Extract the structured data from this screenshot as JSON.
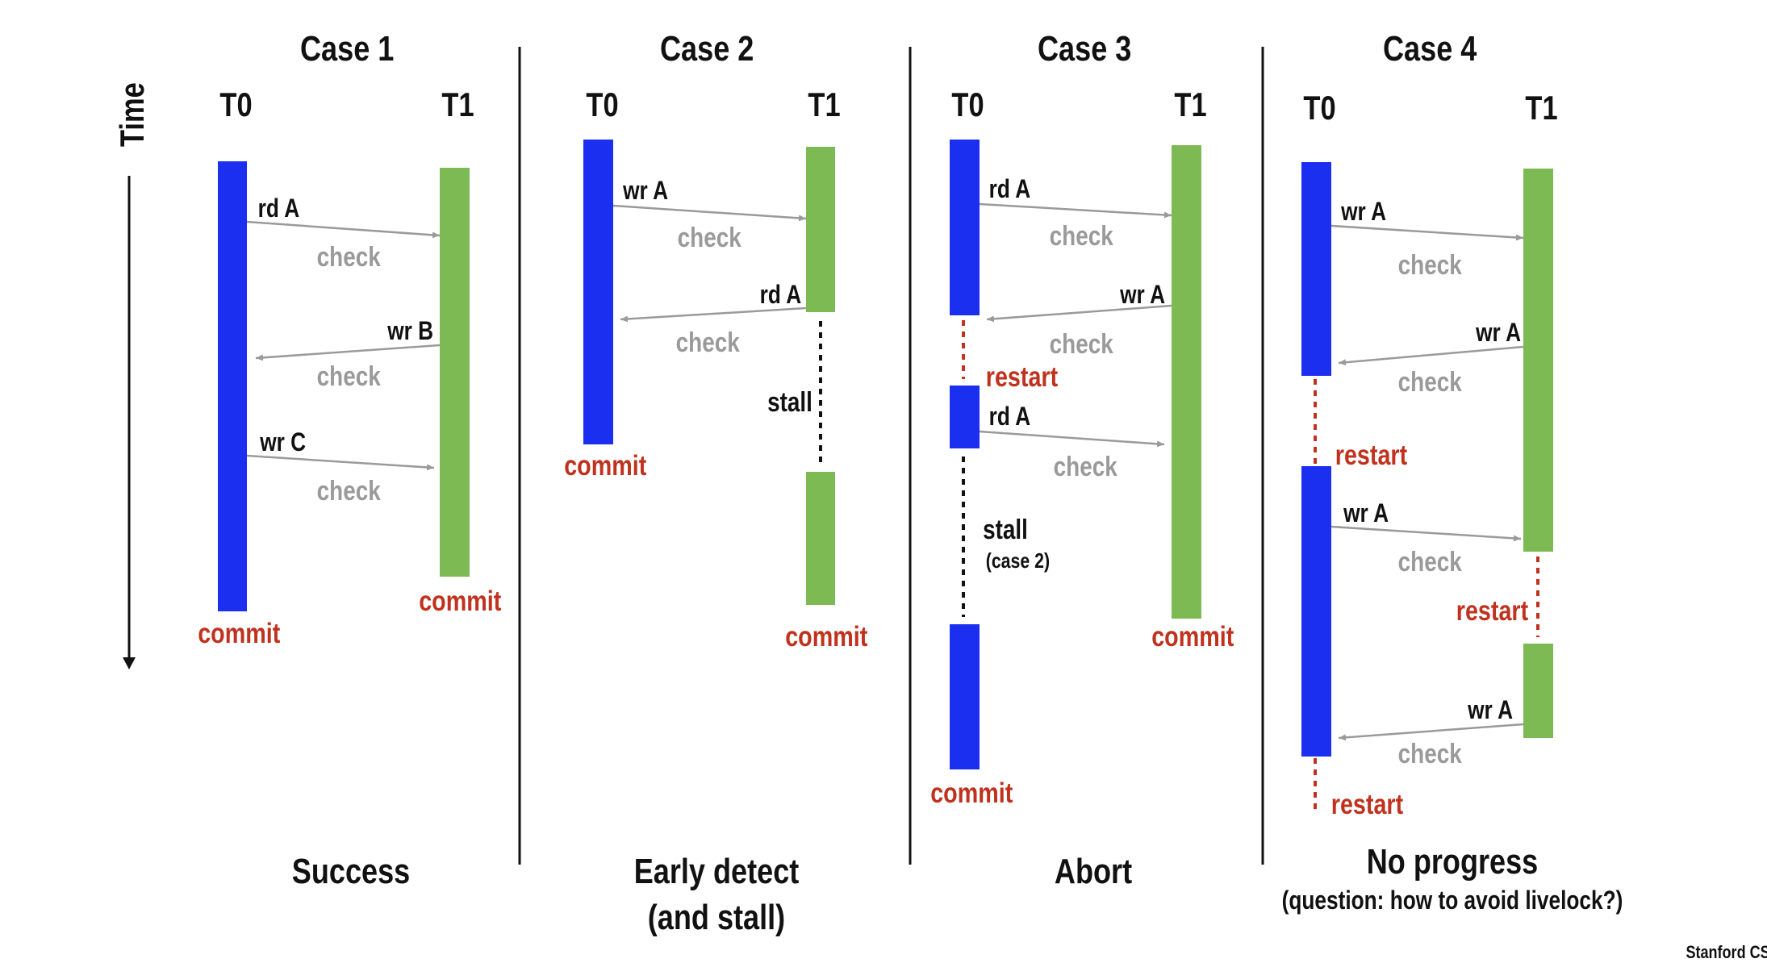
{
  "time_label": "Time",
  "footer": "Stanford CS",
  "colors": {
    "t0": "#1a2ff0",
    "t1": "#7dba54",
    "arrow": "#9a9a9a",
    "red": "#c0321e",
    "text": "#111111"
  },
  "cases": [
    {
      "title": "Case 1",
      "t0": "T0",
      "t1": "T1",
      "ops": [
        "rd A",
        "wr B",
        "wr C"
      ],
      "checks": [
        "check",
        "check",
        "check"
      ],
      "commits": [
        "commit",
        "commit"
      ],
      "caption": [
        "Success"
      ]
    },
    {
      "title": "Case 2",
      "t0": "T0",
      "t1": "T1",
      "ops": [
        "wr A",
        "rd A"
      ],
      "checks": [
        "check",
        "check"
      ],
      "stall": "stall",
      "commits": [
        "commit",
        "commit"
      ],
      "caption": [
        "Early detect",
        "(and stall)"
      ]
    },
    {
      "title": "Case 3",
      "t0": "T0",
      "t1": "T1",
      "ops": [
        "rd A",
        "wr A",
        "rd A"
      ],
      "checks": [
        "check",
        "check",
        "check"
      ],
      "restart": "restart",
      "stall": "stall",
      "stall_note": "(case 2)",
      "commits": [
        "commit",
        "commit"
      ],
      "caption": [
        "Abort"
      ]
    },
    {
      "title": "Case 4",
      "t0": "T0",
      "t1": "T1",
      "ops": [
        "wr A",
        "wr A",
        "wr A",
        "wr A"
      ],
      "checks": [
        "check",
        "check",
        "check",
        "check"
      ],
      "restarts": [
        "restart",
        "restart",
        "restart"
      ],
      "caption": [
        "No progress",
        "(question: how to avoid livelock?)"
      ]
    }
  ]
}
